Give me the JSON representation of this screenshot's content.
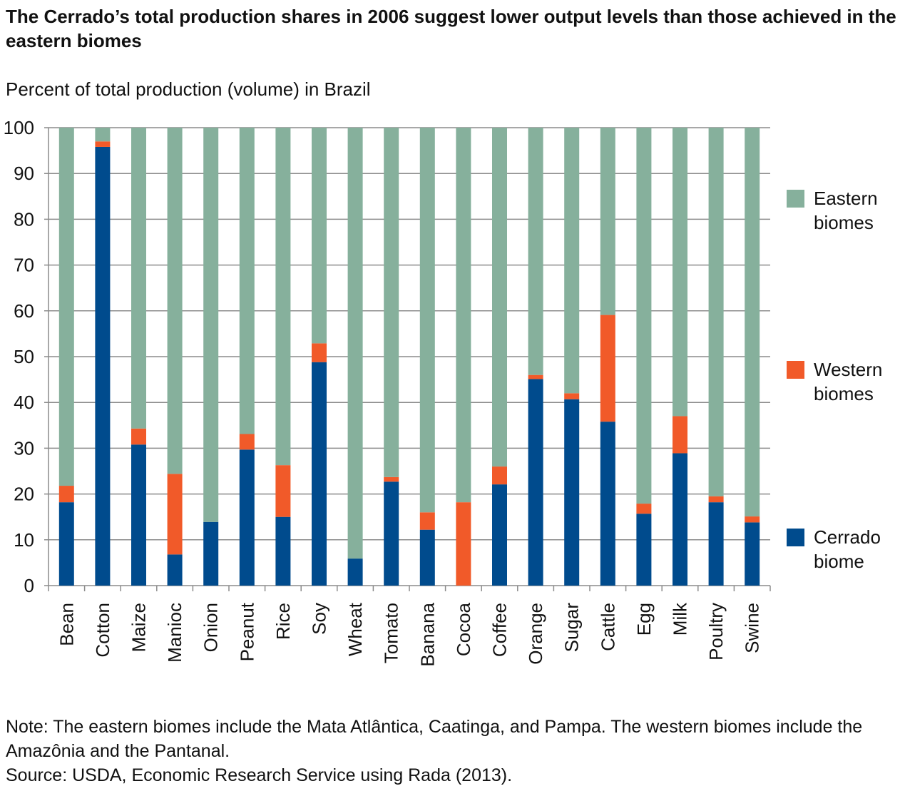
{
  "title": "The Cerrado’s total production shares in 2006 suggest lower output levels than those achieved in the eastern biomes",
  "subtitle": "Percent of total production (volume) in Brazil",
  "notes": {
    "note": "Note: The eastern biomes include the Mata Atlântica, Caatinga, and Pampa. The western biomes include the Amazônia and the Pantanal.",
    "source": "Source: USDA, Economic Research Service using Rada (2013)."
  },
  "chart_data": {
    "type": "bar",
    "stacked": true,
    "ylim": [
      0,
      100
    ],
    "yticks": [
      0,
      10,
      20,
      30,
      40,
      50,
      60,
      70,
      80,
      90,
      100
    ],
    "grid": true,
    "legend_position": "right",
    "categories": [
      "Bean",
      "Cotton",
      "Maize",
      "Manioc",
      "Onion",
      "Peanut",
      "Rice",
      "Soy",
      "Wheat",
      "Tomato",
      "Banana",
      "Cocoa",
      "Coffee",
      "Orange",
      "Sugar",
      "Cattle",
      "Egg",
      "Milk",
      "Poultry",
      "Swine"
    ],
    "series": [
      {
        "name": "Cerrado biome",
        "color": "#004b8d",
        "values": [
          18.2,
          95.8,
          30.8,
          6.8,
          13.9,
          29.7,
          15.0,
          48.8,
          5.9,
          22.7,
          12.2,
          0.0,
          22.1,
          45.1,
          40.7,
          35.8,
          15.7,
          28.9,
          18.2,
          13.8
        ]
      },
      {
        "name": "Western biomes",
        "color": "#f15a29",
        "values": [
          3.6,
          1.2,
          3.5,
          17.6,
          0.0,
          3.4,
          11.3,
          4.1,
          0.0,
          1.0,
          3.8,
          18.2,
          3.9,
          0.9,
          1.3,
          23.3,
          2.2,
          8.1,
          1.3,
          1.3
        ]
      },
      {
        "name": "Eastern biomes",
        "color": "#86b09c",
        "values": [
          78.2,
          3.0,
          65.7,
          75.6,
          86.1,
          66.9,
          73.7,
          47.1,
          94.1,
          76.3,
          84.0,
          81.8,
          74.0,
          54.0,
          58.0,
          40.9,
          82.1,
          63.0,
          80.5,
          84.9
        ]
      }
    ],
    "legend": [
      {
        "label_line1": "Eastern",
        "label_line2": "biomes",
        "color": "#86b09c"
      },
      {
        "label_line1": "Western",
        "label_line2": "biomes",
        "color": "#f15a29"
      },
      {
        "label_line1": "Cerrado",
        "label_line2": "biome",
        "color": "#004b8d"
      }
    ]
  }
}
